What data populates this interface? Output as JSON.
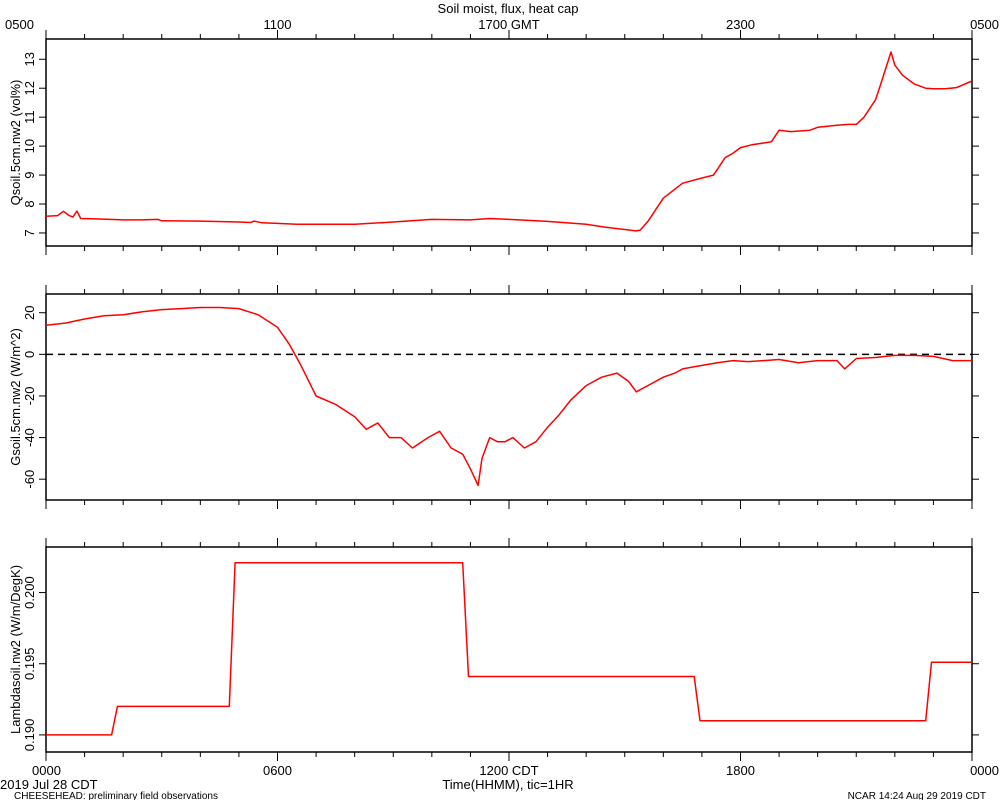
{
  "title": "Soil moist, flux, heat cap",
  "top_axis_ticks": [
    "0500",
    "1100",
    "1700 GMT",
    "2300",
    "0500"
  ],
  "bottom_axis_ticks": [
    "0000",
    "0600",
    "1200 CDT",
    "1800",
    "0000"
  ],
  "xlabel": "Time(HHMM), tic=1HR",
  "date_label": "2019 Jul 28 CDT",
  "footer_left": "CHEESEHEAD: preliminary field observations",
  "footer_right": "NCAR 14:24 Aug 29 2019 CDT",
  "colors": {
    "series": "#ff0000",
    "axis": "#000000",
    "zero_line": "#000000"
  },
  "chart_data": [
    {
      "type": "line",
      "ylabel": "Qsoil.5cm.nw2 (vol%)",
      "ylim": [
        6.55,
        13.7
      ],
      "yticks": [
        7,
        8,
        9,
        10,
        11,
        12,
        13
      ],
      "ytick_labels": [
        "7",
        "8",
        "9",
        "10",
        "11",
        "12",
        "13"
      ],
      "xlim": [
        0,
        24
      ],
      "series": [
        {
          "color": "#ff0000",
          "x": [
            0,
            0.3,
            0.45,
            0.6,
            0.7,
            0.8,
            0.9,
            1.5,
            2,
            2.5,
            2.9,
            3,
            4,
            5,
            5.3,
            5.4,
            5.6,
            6,
            6.5,
            7,
            8,
            9,
            10,
            11,
            11.5,
            12,
            13,
            14,
            14.5,
            15,
            15.3,
            15.4,
            15.6,
            16,
            16.5,
            17,
            17.3,
            17.4,
            17.6,
            17.8,
            18,
            18.3,
            18.8,
            19,
            19.3,
            19.8,
            20,
            20.5,
            20.8,
            21,
            21.2,
            21.5,
            21.6,
            21.9,
            22,
            22.2,
            22.5,
            22.8,
            23,
            23.3,
            23.6,
            24
          ],
          "y": [
            7.58,
            7.6,
            7.75,
            7.6,
            7.55,
            7.76,
            7.5,
            7.48,
            7.45,
            7.45,
            7.47,
            7.42,
            7.41,
            7.38,
            7.36,
            7.41,
            7.35,
            7.33,
            7.3,
            7.3,
            7.3,
            7.38,
            7.47,
            7.45,
            7.5,
            7.47,
            7.4,
            7.3,
            7.2,
            7.12,
            7.07,
            7.1,
            7.4,
            8.2,
            8.72,
            8.9,
            9.0,
            9.2,
            9.6,
            9.75,
            9.95,
            10.05,
            10.15,
            10.55,
            10.5,
            10.55,
            10.65,
            10.72,
            10.75,
            10.75,
            11.0,
            11.6,
            12.0,
            13.25,
            12.8,
            12.45,
            12.15,
            12.0,
            11.98,
            11.98,
            12.02,
            12.25
          ]
        }
      ]
    },
    {
      "type": "line",
      "ylabel": "Gsoil.5cm.nw2 (W/m^2)",
      "ylim": [
        -70,
        29
      ],
      "yticks": [
        -60,
        -40,
        -20,
        0,
        20
      ],
      "ytick_labels": [
        "-60",
        "-40",
        "-20",
        "0",
        "20"
      ],
      "xlim": [
        0,
        24
      ],
      "reference_line": {
        "y": 0,
        "style": "dashed"
      },
      "series": [
        {
          "color": "#ff0000",
          "x": [
            0,
            0.5,
            1,
            1.5,
            2,
            2.5,
            3,
            3.5,
            4,
            4.5,
            5,
            5.5,
            6,
            6.3,
            6.6,
            7,
            7.5,
            8,
            8.3,
            8.6,
            8.9,
            9.2,
            9.5,
            9.9,
            10.2,
            10.5,
            10.8,
            11,
            11.2,
            11.3,
            11.5,
            11.7,
            11.9,
            12.1,
            12.4,
            12.7,
            13,
            13.3,
            13.6,
            14,
            14.4,
            14.8,
            15.1,
            15.3,
            15.7,
            16,
            16.3,
            16.5,
            16.8,
            17.1,
            17.4,
            17.8,
            18.2,
            18.6,
            19,
            19.5,
            20,
            20.5,
            20.7,
            21,
            21.5,
            22,
            22.5,
            23,
            23.5,
            24
          ],
          "y": [
            14,
            15,
            17,
            18.5,
            19,
            20.5,
            21.5,
            22,
            22.5,
            22.5,
            22,
            19,
            13,
            5,
            -5,
            -20,
            -24,
            -30,
            -36,
            -33,
            -40,
            -40,
            -45,
            -40,
            -37,
            -45,
            -48,
            -55,
            -63,
            -50,
            -40,
            -42,
            -42,
            -40,
            -45,
            -42,
            -35,
            -29,
            -22,
            -15,
            -11,
            -9,
            -13,
            -18,
            -14,
            -11,
            -9,
            -7,
            -6,
            -5,
            -4,
            -3,
            -3.5,
            -3,
            -2.5,
            -4,
            -3,
            -3,
            -7,
            -2,
            -1.5,
            -0.5,
            -0.5,
            -1,
            -3,
            -3
          ]
        }
      ]
    },
    {
      "type": "line",
      "ylabel": "Lambdasoil.nw2 (W/m/DegK)",
      "ylim": [
        0.1888,
        0.2032
      ],
      "yticks": [
        0.19,
        0.195,
        0.2
      ],
      "ytick_labels": [
        "0.190",
        "0.195",
        "0.200"
      ],
      "xlim": [
        0,
        24
      ],
      "series": [
        {
          "color": "#ff0000",
          "x": [
            0,
            1.7,
            1.85,
            4.75,
            4.9,
            10.8,
            10.95,
            16.8,
            16.95,
            22.8,
            22.95,
            24
          ],
          "y": [
            0.19,
            0.19,
            0.192,
            0.192,
            0.2021,
            0.2021,
            0.1941,
            0.1941,
            0.191,
            0.191,
            0.1951,
            0.1951
          ]
        }
      ]
    }
  ]
}
